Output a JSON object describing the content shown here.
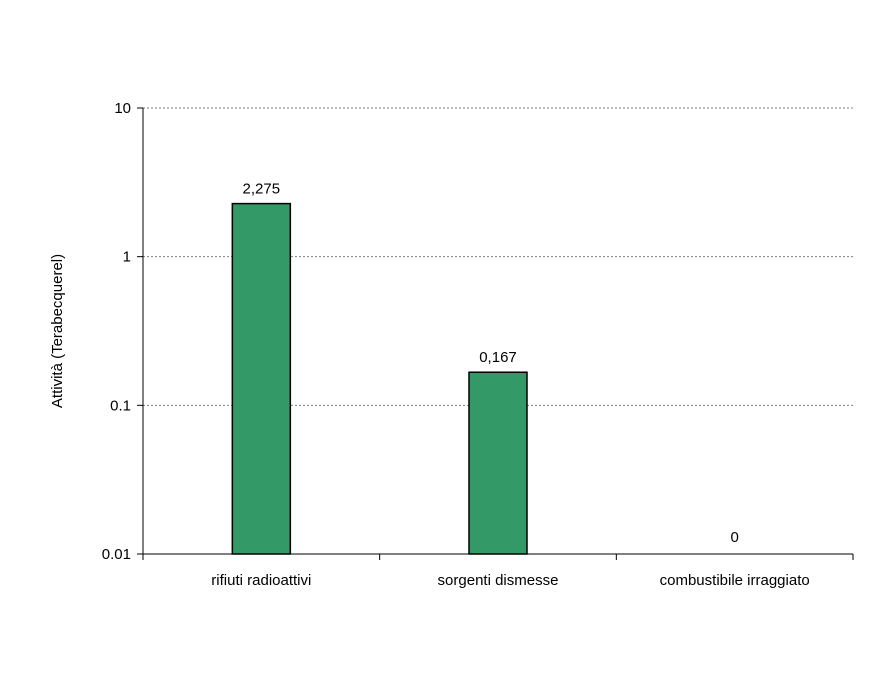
{
  "chart_data": {
    "type": "bar",
    "title": "",
    "xlabel": "",
    "ylabel": "Attività (Terabecquerel)",
    "yscale": "log",
    "ylim": [
      0.01,
      10
    ],
    "yticks": [
      0.01,
      0.1,
      1,
      10
    ],
    "ytick_labels": [
      "0.01",
      "0.1",
      "1",
      "10"
    ],
    "grid": "horizontal dotted",
    "categories": [
      "rifiuti radioattivi",
      "sorgenti dismesse",
      "combustibile irraggiato"
    ],
    "values": [
      2.275,
      0.167,
      0
    ],
    "data_labels": [
      "2,275",
      "0,167",
      "0"
    ],
    "colors": {
      "bar": "#339966",
      "bar_border": "#000000",
      "grid": "#808080",
      "axis": "#000000"
    }
  }
}
